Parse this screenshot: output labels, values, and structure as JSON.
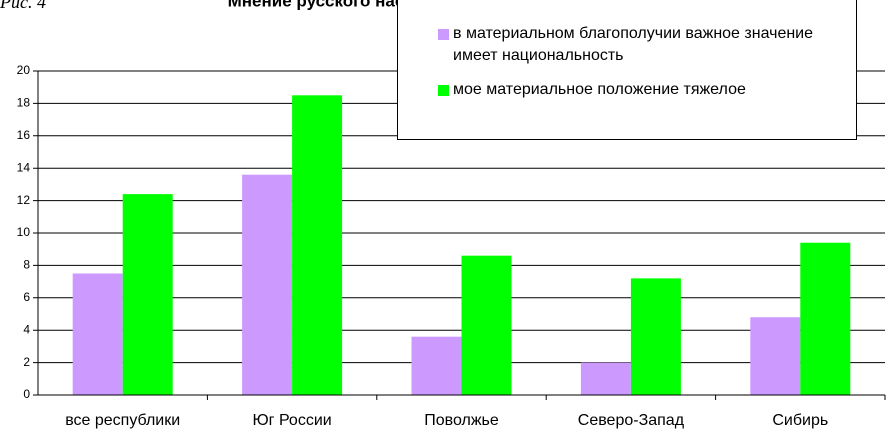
{
  "chart_data": {
    "type": "bar",
    "title": "Мнение русского населения республик, %",
    "annotation": "Рис. 4",
    "categories": [
      "все республики",
      "Юг России",
      "Поволжье",
      "Северо-Запад",
      "Сибирь"
    ],
    "series": [
      {
        "name": "в материальном благополучии важное значение имеет национальность",
        "color": "#cc99ff",
        "values": [
          7.5,
          13.6,
          3.6,
          2.0,
          4.8
        ]
      },
      {
        "name": "мое материальное положение тяжелое",
        "color": "#00ff00",
        "values": [
          12.4,
          18.5,
          8.6,
          7.2,
          9.4
        ]
      }
    ],
    "ylim": [
      0,
      20
    ],
    "yticks": [
      0,
      2,
      4,
      6,
      8,
      10,
      12,
      14,
      16,
      18,
      20
    ],
    "grid": true,
    "legend": "top-right"
  }
}
